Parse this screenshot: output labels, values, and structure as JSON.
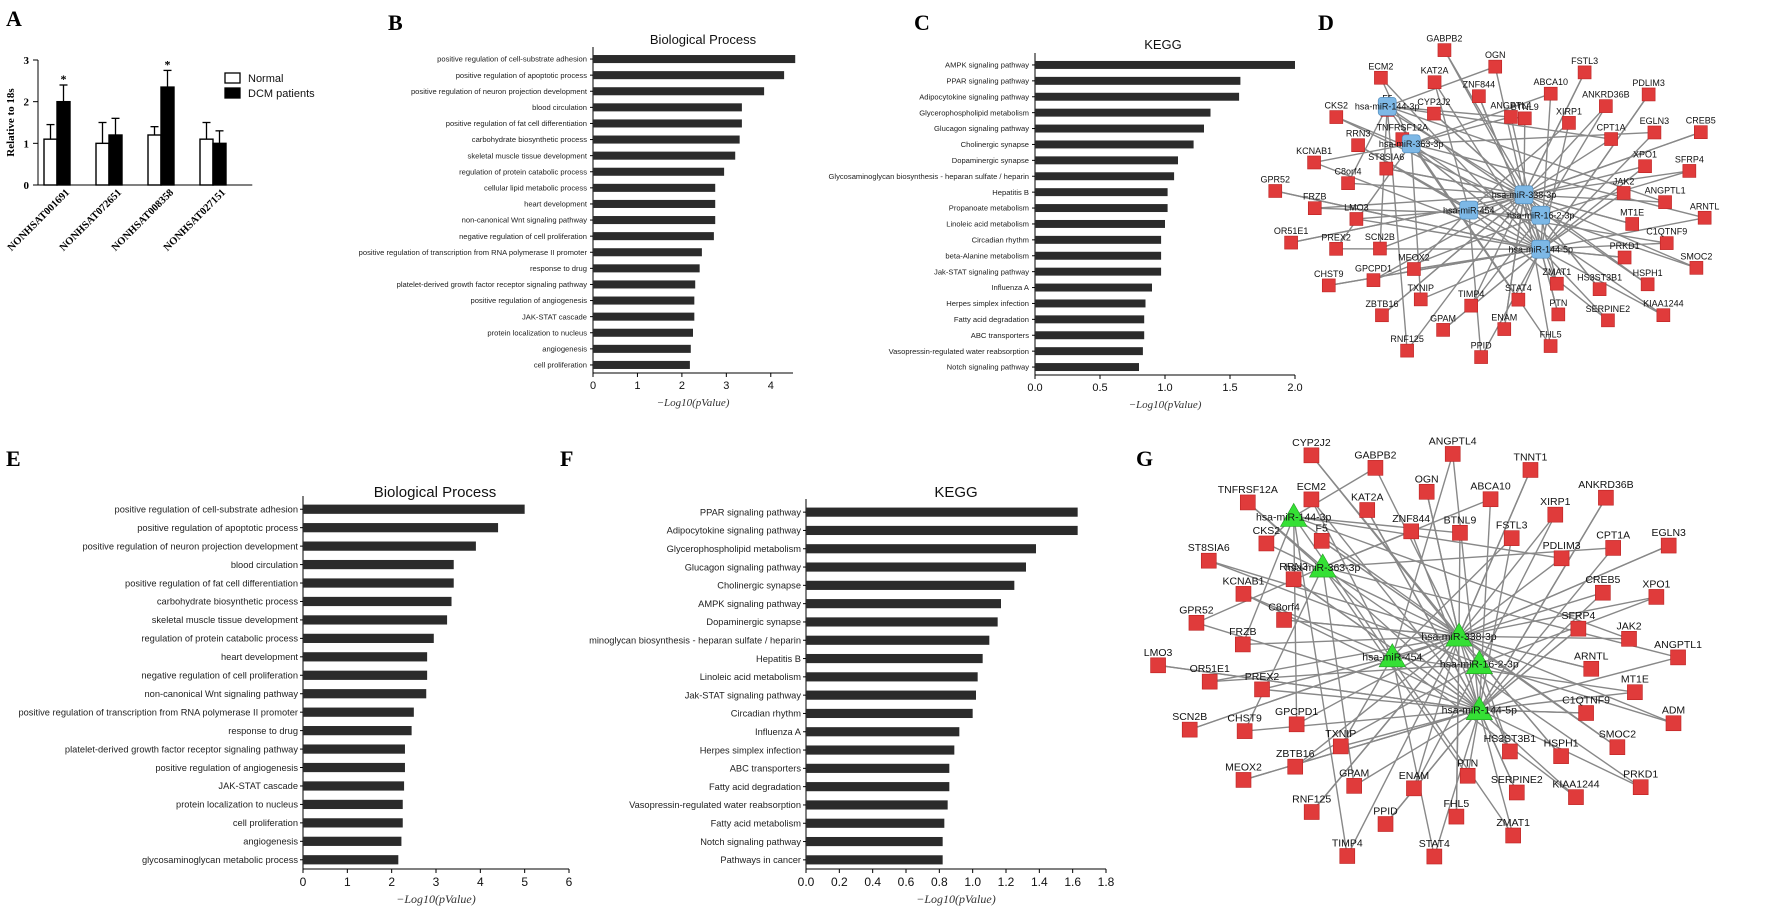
{
  "panels": {
    "A": "A",
    "B": "B",
    "C": "C",
    "D": "D",
    "E": "E",
    "F": "F",
    "G": "G"
  },
  "chart_data": [
    {
      "id": "A",
      "type": "bar",
      "categories": [
        "NONHSAT001691",
        "NONHSAT072651",
        "NONHSAT008358",
        "NONHSAT027151"
      ],
      "series": [
        {
          "name": "Normal",
          "color": "#ffffff",
          "values": [
            1.1,
            1.0,
            1.2,
            1.1
          ],
          "err": [
            0.35,
            0.5,
            0.2,
            0.4
          ]
        },
        {
          "name": "DCM patients",
          "color": "#000000",
          "values": [
            2.0,
            1.2,
            2.35,
            1.0
          ],
          "err": [
            0.4,
            0.4,
            0.4,
            0.3
          ]
        }
      ],
      "annotations": [
        "*",
        "",
        "*",
        ""
      ],
      "ylabel": "Relative to 18s",
      "ylim": [
        0,
        3
      ],
      "yticks": [
        "0",
        "1",
        "2",
        "3"
      ]
    },
    {
      "id": "B",
      "type": "bar",
      "title": "Biological Process",
      "xlabel": "−Log10(pValue)",
      "xlim": [
        0,
        4.5
      ],
      "xticks": [
        "0",
        "1",
        "2",
        "3",
        "4"
      ],
      "categories": [
        "positive regulation of cell-substrate adhesion",
        "positive regulation of apoptotic process",
        "positive regulation of neuron projection development",
        "blood circulation",
        "positive regulation of fat cell differentiation",
        "carbohydrate biosynthetic process",
        "skeletal muscle tissue development",
        "regulation of protein catabolic process",
        "cellular lipid metabolic process",
        "heart development",
        "non-canonical Wnt signaling pathway",
        "negative regulation of cell proliferation",
        "positive regulation of transcription from RNA polymerase II promoter",
        "response to drug",
        "platelet-derived growth factor receptor signaling pathway",
        "positive regulation of angiogenesis",
        "JAK-STAT cascade",
        "protein localization to nucleus",
        "angiogenesis",
        "cell proliferation"
      ],
      "values": [
        4.55,
        4.3,
        3.85,
        3.35,
        3.35,
        3.3,
        3.2,
        2.95,
        2.75,
        2.75,
        2.75,
        2.72,
        2.45,
        2.4,
        2.3,
        2.28,
        2.28,
        2.25,
        2.2,
        2.18
      ]
    },
    {
      "id": "C",
      "type": "bar",
      "title": "KEGG",
      "xlabel": "−Log10(pValue)",
      "xlim": [
        0,
        2.0
      ],
      "xticks": [
        "0.0",
        "0.5",
        "1.0",
        "1.5",
        "2.0"
      ],
      "categories": [
        "AMPK signaling pathway",
        "PPAR signaling pathway",
        "Adipocytokine signaling pathway",
        "Glycerophospholipid metabolism",
        "Glucagon signaling pathway",
        "Cholinergic synapse",
        "Dopaminergic synapse",
        "Glycosaminoglycan biosynthesis - heparan sulfate / heparin",
        "Hepatitis B",
        "Propanoate metabolism",
        "Linoleic acid metabolism",
        "Circadian rhythm",
        "beta-Alanine metabolism",
        "Jak-STAT signaling pathway",
        "Influenza A",
        "Herpes simplex infection",
        "Fatty acid degradation",
        "ABC transporters",
        "Vasopressin-regulated water reabsorption",
        "Notch signaling pathway"
      ],
      "values": [
        2.0,
        1.58,
        1.57,
        1.35,
        1.3,
        1.22,
        1.1,
        1.07,
        1.02,
        1.02,
        1.0,
        0.97,
        0.97,
        0.97,
        0.9,
        0.85,
        0.84,
        0.84,
        0.83,
        0.8
      ]
    },
    {
      "id": "E",
      "type": "bar",
      "title": "Biological Process",
      "xlabel": "−Log10(pValue)",
      "xlim": [
        0,
        6
      ],
      "xticks": [
        "0",
        "1",
        "2",
        "3",
        "4",
        "5",
        "6"
      ],
      "categories": [
        "positive regulation of cell-substrate adhesion",
        "positive regulation of apoptotic process",
        "positive regulation of neuron projection development",
        "blood circulation",
        "positive regulation of fat cell differentiation",
        "carbohydrate biosynthetic process",
        "skeletal muscle tissue development",
        "regulation of protein catabolic process",
        "heart development",
        "negative regulation of cell proliferation",
        "non-canonical Wnt signaling pathway",
        "positive regulation of transcription from RNA polymerase II promoter",
        "response to drug",
        "platelet-derived growth factor receptor signaling pathway",
        "positive regulation of angiogenesis",
        "JAK-STAT cascade",
        "protein localization to nucleus",
        "cell proliferation",
        "angiogenesis",
        "glycosaminoglycan metabolic process"
      ],
      "values": [
        5.0,
        4.4,
        3.9,
        3.4,
        3.4,
        3.35,
        3.25,
        2.95,
        2.8,
        2.8,
        2.78,
        2.5,
        2.45,
        2.3,
        2.3,
        2.28,
        2.25,
        2.25,
        2.22,
        2.15
      ]
    },
    {
      "id": "F",
      "type": "bar",
      "title": "KEGG",
      "xlabel": "−Log10(pValue)",
      "xlim": [
        0,
        1.8
      ],
      "xticks": [
        "0.0",
        "0.2",
        "0.4",
        "0.6",
        "0.8",
        "1.0",
        "1.2",
        "1.4",
        "1.6",
        "1.8"
      ],
      "categories": [
        "PPAR signaling pathway",
        "Adipocytokine signaling pathway",
        "Glycerophospholipid metabolism",
        "Glucagon signaling pathway",
        "Cholinergic synapse",
        "AMPK signaling pathway",
        "Dopaminergic synapse",
        "minoglycan biosynthesis - heparan sulfate / heparin",
        "Hepatitis B",
        "Linoleic acid metabolism",
        "Jak-STAT signaling pathway",
        "Circadian rhythm",
        "Influenza A",
        "Herpes simplex infection",
        "ABC transporters",
        "Fatty acid degradation",
        "Vasopressin-regulated water reabsorption",
        "Fatty acid metabolism",
        "Notch signaling pathway",
        "Pathways in cancer"
      ],
      "values": [
        1.63,
        1.63,
        1.38,
        1.32,
        1.25,
        1.17,
        1.15,
        1.1,
        1.06,
        1.03,
        1.02,
        1.0,
        0.92,
        0.89,
        0.86,
        0.86,
        0.85,
        0.83,
        0.82,
        0.82
      ]
    }
  ],
  "networks": {
    "D": {
      "hub_color": "#7db8e6",
      "hubs": [
        "hsa-miR-144-3p",
        "hsa-miR-363-3p",
        "hsa-miR-338-3p",
        "hsa-miR-454",
        "hsa-miR-16-2-3p",
        "hsa-miR-144-5p"
      ],
      "genes": [
        "BTNL9",
        "ABCA10",
        "FSTL3",
        "XIRP1",
        "ANKRD36B",
        "PDLIM3",
        "CPT1A",
        "EGLN3",
        "CREB5",
        "XPO1",
        "SFRP4",
        "JAK2",
        "ANGPTL1",
        "ARNTL",
        "MT1E",
        "C1QTNF9",
        "SMOC2",
        "PRKD1",
        "HSPH1",
        "KIAA1244",
        "HS3ST3B1",
        "SERPINE2",
        "ZMAT1",
        "PTN",
        "FHL5",
        "STAT4",
        "ENAM",
        "PPID",
        "TIMP4",
        "GPAM",
        "RNF125",
        "TXNIP",
        "ZBTB16",
        "MEOX2",
        "GPCPD1",
        "CHST9",
        "SCN2B",
        "PREX2",
        "OR51E1",
        "LMO3",
        "FRZB",
        "GPR52",
        "C8orf4",
        "KCNAB1",
        "ST8SIA6",
        "RRN3",
        "CKS2",
        "TNFRSF12A",
        "F5",
        "ECM2",
        "CYP2J2",
        "KAT2A",
        "GABPB2",
        "ZNF844",
        "OGN",
        "ANGPTL4"
      ]
    },
    "G": {
      "hub_color": "#35e035",
      "hubs": [
        "hsa-miR-144-3p",
        "hsa-miR-363-3p",
        "hsa-miR-338-3p",
        "hsa-miR-454",
        "hsa-miR-16-2-3p",
        "hsa-miR-144-5p"
      ],
      "genes": [
        "BTNL9",
        "ABCA10",
        "TNNT1",
        "FSTL3",
        "XIRP1",
        "ANKRD36B",
        "PDLIM3",
        "CPT1A",
        "EGLN3",
        "CREB5",
        "XPO1",
        "SFRP4",
        "JAK2",
        "ANGPTL1",
        "ARNTL",
        "MT1E",
        "ADM",
        "C1QTNF9",
        "SMOC2",
        "PRKD1",
        "HSPH1",
        "KIAA1244",
        "HS3ST3B1",
        "SERPINE2",
        "ZMAT1",
        "PTN",
        "FHL5",
        "STAT4",
        "ENAM",
        "PPID",
        "TIMP4",
        "GPAM",
        "RNF125",
        "TXNIP",
        "ZBTB16",
        "MEOX2",
        "GPCPD1",
        "CHST9",
        "SCN2B",
        "PREX2",
        "OR51E1",
        "LMO3",
        "FRZB",
        "GPR52",
        "C8orf4",
        "KCNAB1",
        "ST8SIA6",
        "RRN3",
        "CKS2",
        "TNFRSF12A",
        "F5",
        "ECM2",
        "CYP2J2",
        "KAT2A",
        "GABPB2",
        "ZNF844",
        "OGN",
        "ANGPTL4"
      ]
    }
  }
}
